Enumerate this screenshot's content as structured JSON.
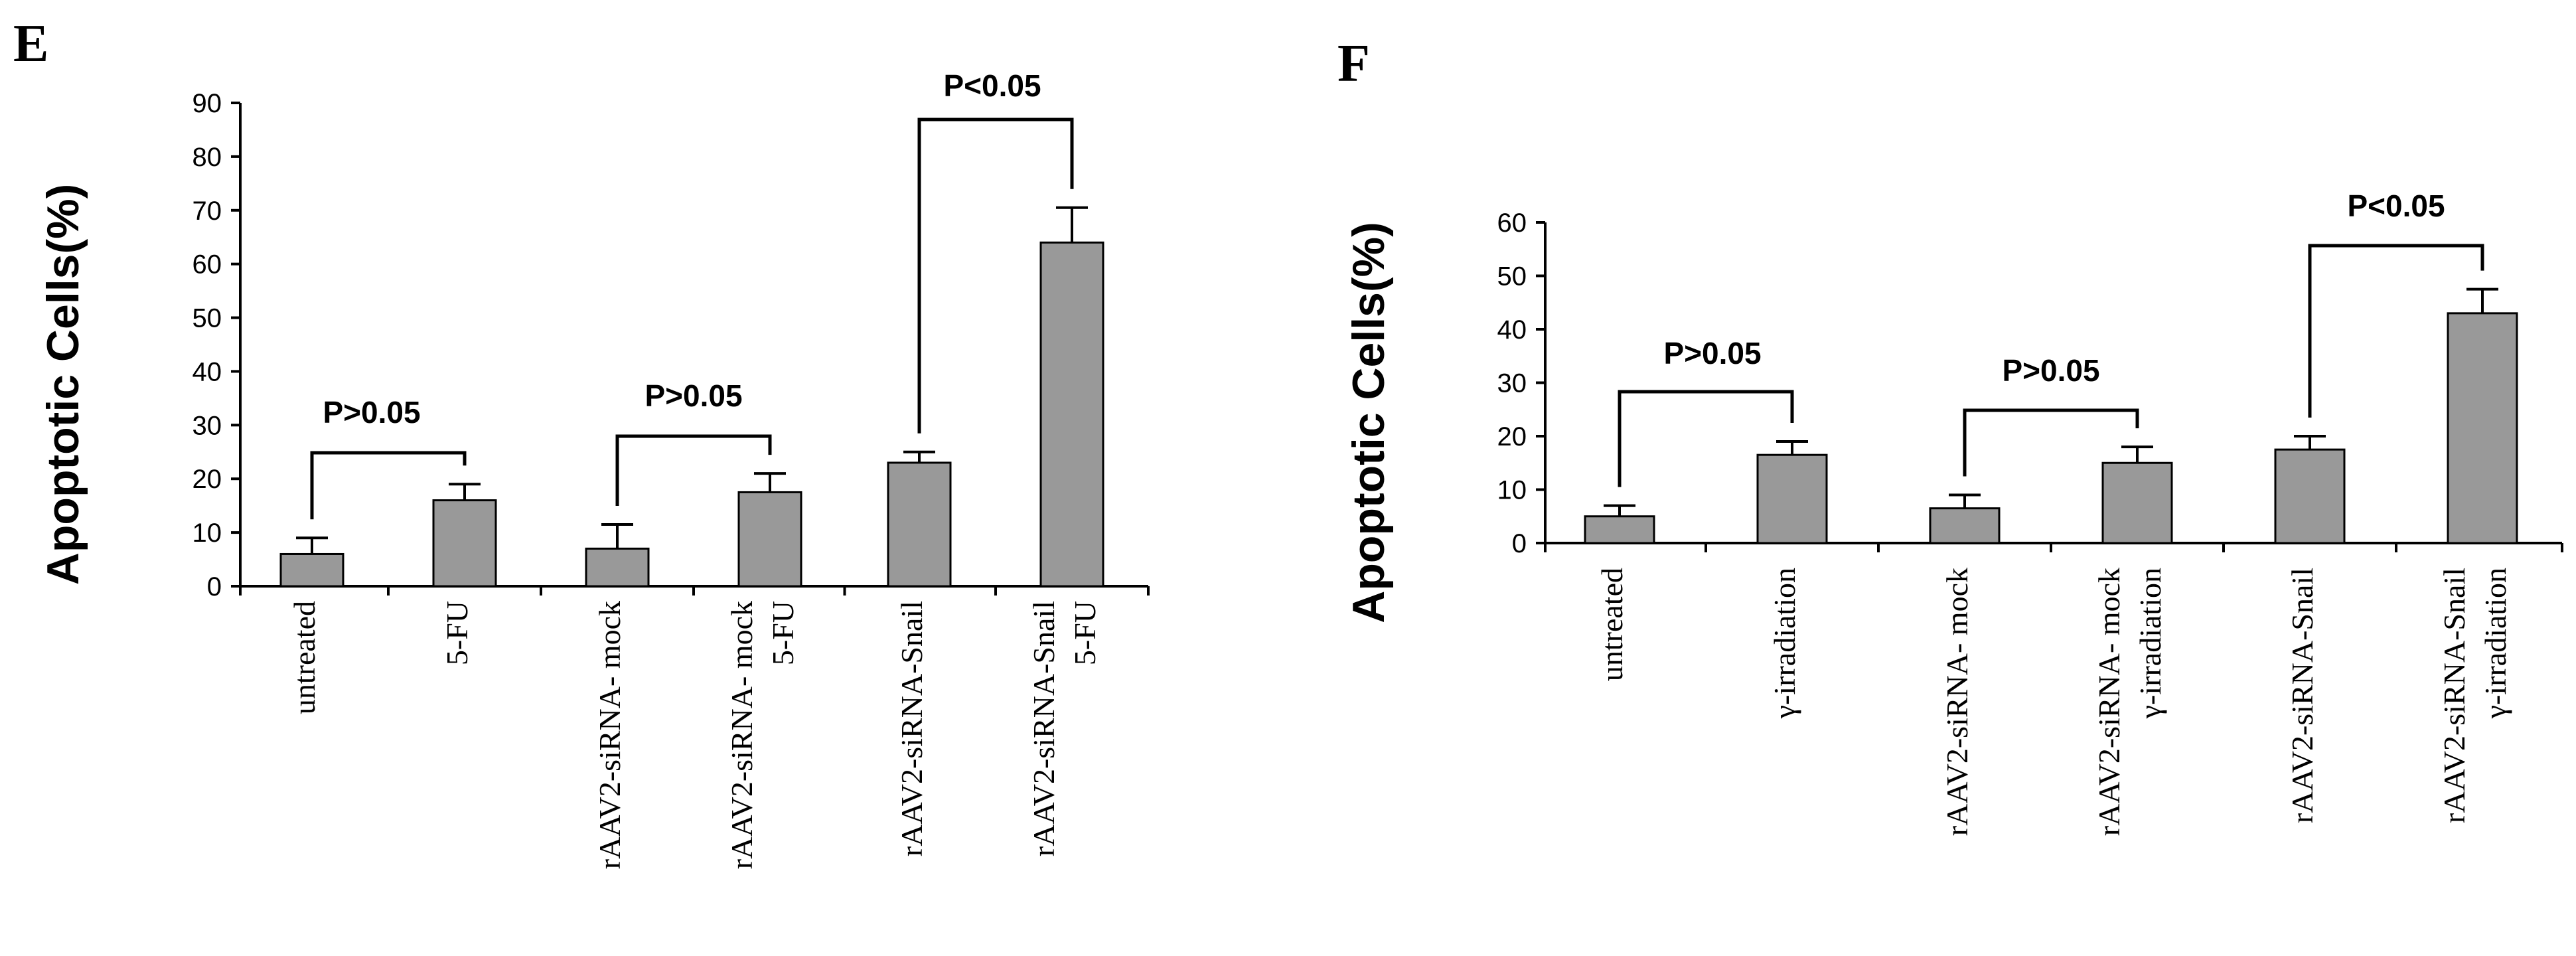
{
  "chart_data": [
    {
      "panel_label": "E",
      "type": "bar",
      "ylabel": "Apoptotic Cells(%)",
      "xlabel": "",
      "ylim": [
        0,
        90
      ],
      "yticks": [
        0,
        10,
        20,
        30,
        40,
        50,
        60,
        70,
        80,
        90
      ],
      "grid": false,
      "legend": "none",
      "bar_color": "#999999",
      "categories": [
        [
          "untreated"
        ],
        [
          "5-FU"
        ],
        [
          "rAAV2-siRNA- mock"
        ],
        [
          "rAAV2-siRNA- mock",
          "5-FU"
        ],
        [
          "rAAV2-siRNA-Snail"
        ],
        [
          "rAAV2-siRNA-Snail",
          "5-FU"
        ]
      ],
      "values": [
        6,
        16,
        7,
        17.5,
        23,
        64
      ],
      "errors": [
        3,
        3,
        4.5,
        3.5,
        2,
        6.5
      ],
      "comparisons": [
        {
          "from": 0,
          "to": 1,
          "label": "P>0.05"
        },
        {
          "from": 2,
          "to": 3,
          "label": "P>0.05"
        },
        {
          "from": 4,
          "to": 5,
          "label": "P<0.05"
        }
      ]
    },
    {
      "panel_label": "F",
      "type": "bar",
      "ylabel": "Apoptotic Cells(%)",
      "xlabel": "",
      "ylim": [
        0,
        60
      ],
      "yticks": [
        0,
        10,
        20,
        30,
        40,
        50,
        60
      ],
      "grid": false,
      "legend": "none",
      "bar_color": "#999999",
      "categories": [
        [
          "untreated"
        ],
        [
          "γ-irradiation"
        ],
        [
          "rAAV2-siRNA- mock"
        ],
        [
          "rAAV2-siRNA- mock",
          "γ-irradiation"
        ],
        [
          "rAAV2-siRNA-Snail"
        ],
        [
          "rAAV2-siRNA-Snail",
          "γ-irradiation"
        ]
      ],
      "values": [
        5,
        16.5,
        6.5,
        15,
        17.5,
        43
      ],
      "errors": [
        2,
        2.5,
        2.5,
        3,
        2.5,
        4.5
      ],
      "comparisons": [
        {
          "from": 0,
          "to": 1,
          "label": "P>0.05"
        },
        {
          "from": 2,
          "to": 3,
          "label": "P>0.05"
        },
        {
          "from": 4,
          "to": 5,
          "label": "P<0.05"
        }
      ]
    }
  ]
}
